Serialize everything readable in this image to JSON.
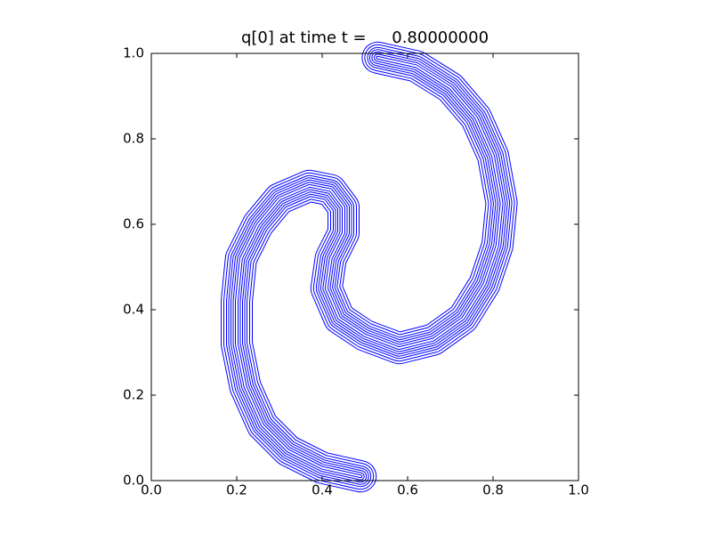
{
  "chart_data": {
    "type": "contour",
    "title": "q[0] at time t =     0.80000000",
    "color": "#0000ff",
    "x": [
      0.49,
      0.4,
      0.32,
      0.26,
      0.22,
      0.2,
      0.2,
      0.21,
      0.25,
      0.3,
      0.37,
      0.42,
      0.45,
      0.45,
      0.42,
      0.41,
      0.44,
      0.5,
      0.58,
      0.66,
      0.73,
      0.78,
      0.81,
      0.82,
      0.8,
      0.76,
      0.7,
      0.62,
      0.53
    ],
    "y": [
      0.01,
      0.03,
      0.07,
      0.13,
      0.22,
      0.32,
      0.42,
      0.52,
      0.6,
      0.66,
      0.69,
      0.68,
      0.64,
      0.58,
      0.52,
      0.45,
      0.38,
      0.34,
      0.31,
      0.33,
      0.38,
      0.46,
      0.55,
      0.65,
      0.76,
      0.85,
      0.92,
      0.97,
      0.99
    ],
    "xlim": [
      0,
      1
    ],
    "ylim": [
      0,
      1
    ],
    "xticks": [
      {
        "value": 0,
        "label": "0.0"
      },
      0.2,
      0.4,
      0.6,
      0.8,
      {
        "value": 1,
        "label": "1.0"
      }
    ],
    "yticks": [
      {
        "value": 0,
        "label": "0.0"
      },
      0.2,
      0.4,
      0.6,
      0.8,
      {
        "value": 1,
        "label": "1.0"
      }
    ]
  }
}
